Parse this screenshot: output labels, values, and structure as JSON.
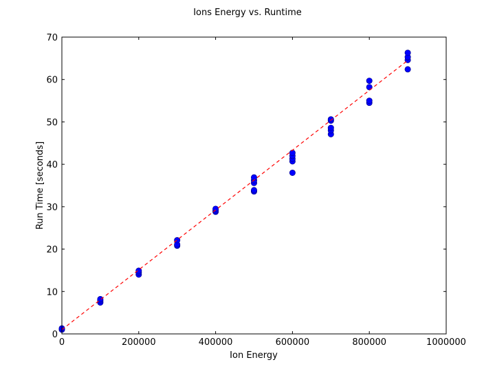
{
  "chart_data": {
    "type": "scatter",
    "title": "Ions Energy vs. Runtime",
    "xlabel": "Ion Energy",
    "ylabel": "Run Time [seconds]",
    "xlim": [
      0,
      1000000
    ],
    "ylim": [
      0,
      70
    ],
    "xticks": [
      "0",
      "200000",
      "400000",
      "600000",
      "800000",
      "1000000"
    ],
    "yticks": [
      "0",
      "10",
      "20",
      "30",
      "40",
      "50",
      "60",
      "70"
    ],
    "grid": false,
    "legend": "none",
    "series": [
      {
        "kind": "points",
        "color": "#0000ff",
        "points": [
          [
            0,
            1.0
          ],
          [
            0,
            1.3
          ],
          [
            100000,
            7.4
          ],
          [
            100000,
            7.8
          ],
          [
            100000,
            8.2
          ],
          [
            200000,
            14.0
          ],
          [
            200000,
            14.5
          ],
          [
            200000,
            14.9
          ],
          [
            300000,
            20.8
          ],
          [
            300000,
            21.1
          ],
          [
            300000,
            22.1
          ],
          [
            400000,
            28.8
          ],
          [
            400000,
            29.1
          ],
          [
            400000,
            29.5
          ],
          [
            500000,
            33.6
          ],
          [
            500000,
            33.9
          ],
          [
            500000,
            35.6
          ],
          [
            500000,
            36.2
          ],
          [
            500000,
            36.9
          ],
          [
            600000,
            38.0
          ],
          [
            600000,
            40.7
          ],
          [
            600000,
            41.3
          ],
          [
            600000,
            42.0
          ],
          [
            600000,
            42.7
          ],
          [
            700000,
            47.1
          ],
          [
            700000,
            48.0
          ],
          [
            700000,
            48.6
          ],
          [
            700000,
            50.3
          ],
          [
            700000,
            50.6
          ],
          [
            800000,
            54.5
          ],
          [
            800000,
            55.0
          ],
          [
            800000,
            58.2
          ],
          [
            800000,
            59.7
          ],
          [
            900000,
            62.4
          ],
          [
            900000,
            64.6
          ],
          [
            900000,
            65.3
          ],
          [
            900000,
            66.3
          ]
        ]
      },
      {
        "kind": "fit-line",
        "color": "#ff0000",
        "style": "dashed",
        "points": [
          [
            0,
            1.0
          ],
          [
            900000,
            64.5
          ]
        ]
      }
    ]
  }
}
